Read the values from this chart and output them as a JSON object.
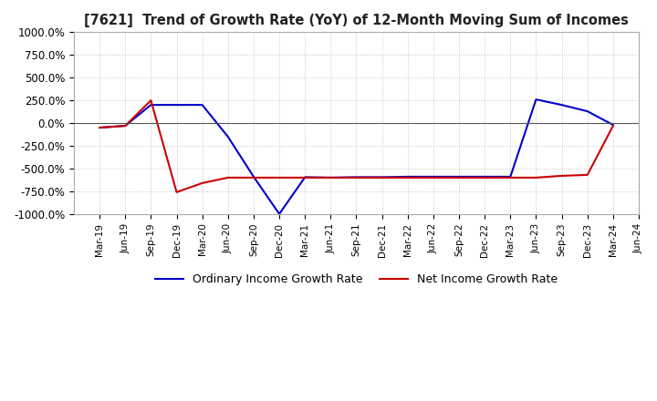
{
  "title": "[7621]  Trend of Growth Rate (YoY) of 12-Month Moving Sum of Incomes",
  "ylim": [
    -1000,
    1000
  ],
  "yticks": [
    -1000,
    -750,
    -500,
    -250,
    0,
    250,
    500,
    750,
    1000
  ],
  "ytick_labels": [
    "-1000.0%",
    "-750.0%",
    "-500.0%",
    "-250.0%",
    "0.0%",
    "250.0%",
    "500.0%",
    "750.0%",
    "1000.0%"
  ],
  "background_color": "#ffffff",
  "grid_color": "#bbbbbb",
  "ordinary_color": "#0000cc",
  "net_color": "#cc0000",
  "legend_ordinary": "Ordinary Income Growth Rate",
  "legend_net": "Net Income Growth Rate",
  "x_labels": [
    "Mar-19",
    "Jun-19",
    "Sep-19",
    "Dec-19",
    "Mar-20",
    "Jun-20",
    "Sep-20",
    "Dec-20",
    "Mar-21",
    "Jun-21",
    "Sep-21",
    "Dec-21",
    "Mar-22",
    "Jun-22",
    "Sep-22",
    "Dec-22",
    "Mar-23",
    "Jun-23",
    "Sep-23",
    "Dec-23",
    "Mar-24",
    "Jun-24"
  ],
  "ordinary_income": [
    -50,
    -30,
    200,
    200,
    200,
    -150,
    -590,
    -1000,
    -595,
    -600,
    -595,
    -595,
    -590,
    -590,
    -590,
    -590,
    -590,
    260,
    200,
    130,
    -20,
    null
  ],
  "net_income": [
    -50,
    -30,
    250,
    -760,
    -660,
    -600,
    -600,
    -600,
    -600,
    -600,
    -600,
    -600,
    -600,
    -600,
    -600,
    -600,
    -600,
    -600,
    -580,
    -570,
    -30,
    null
  ]
}
